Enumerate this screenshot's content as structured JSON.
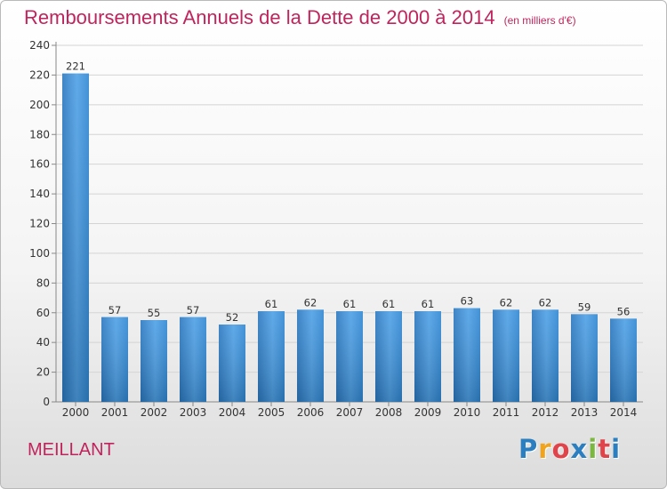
{
  "chart_data": {
    "type": "bar",
    "title": "Remboursements Annuels de la Dette de 2000 à 2014",
    "unit": "(en milliers d'€)",
    "categories": [
      "2000",
      "2001",
      "2002",
      "2003",
      "2004",
      "2005",
      "2006",
      "2007",
      "2008",
      "2009",
      "2010",
      "2011",
      "2012",
      "2013",
      "2014"
    ],
    "values": [
      221,
      57,
      55,
      57,
      52,
      61,
      62,
      61,
      61,
      61,
      63,
      62,
      62,
      59,
      56
    ],
    "ylim": [
      0,
      240
    ],
    "yticks": [
      0,
      20,
      40,
      60,
      80,
      100,
      120,
      140,
      160,
      180,
      200,
      220,
      240
    ],
    "grid": true,
    "bar_color": "#2f86d2"
  },
  "footer": {
    "city": "MEILLANT",
    "logo_letters": [
      "P",
      "r",
      "o",
      "x",
      "i",
      "t",
      "i"
    ],
    "logo_colors": [
      "#2b7fc0",
      "#f0a31c",
      "#e0434a",
      "#2b7fc0",
      "#7cb83f",
      "#e0434a",
      "#2b7fc0"
    ]
  }
}
